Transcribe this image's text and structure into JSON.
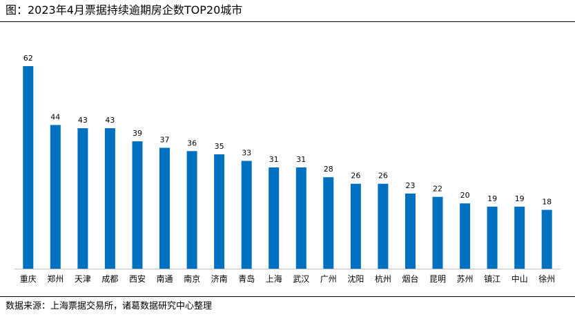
{
  "title": "图：2023年4月票据持续逾期房企数TOP20城市",
  "source": "数据来源：上海票据交易所，诸葛数据研究中心整理",
  "colors": {
    "bar": "#0070C0",
    "axis": "#BFBFBF",
    "text": "#000000"
  },
  "chart_data": {
    "type": "bar",
    "title": "图：2023年4月票据持续逾期房企数TOP20城市",
    "xlabel": "",
    "ylabel": "",
    "categories": [
      "重庆",
      "郑州",
      "天津",
      "成都",
      "西安",
      "南通",
      "南京",
      "济南",
      "青岛",
      "上海",
      "武汉",
      "广州",
      "沈阳",
      "杭州",
      "烟台",
      "昆明",
      "苏州",
      "镇江",
      "中山",
      "徐州"
    ],
    "values": [
      62,
      44,
      43,
      43,
      39,
      37,
      36,
      35,
      33,
      31,
      31,
      28,
      26,
      26,
      23,
      22,
      20,
      19,
      19,
      18
    ],
    "ylim": [
      0,
      62
    ],
    "grid": false,
    "legend": "none",
    "data_labels": true
  }
}
